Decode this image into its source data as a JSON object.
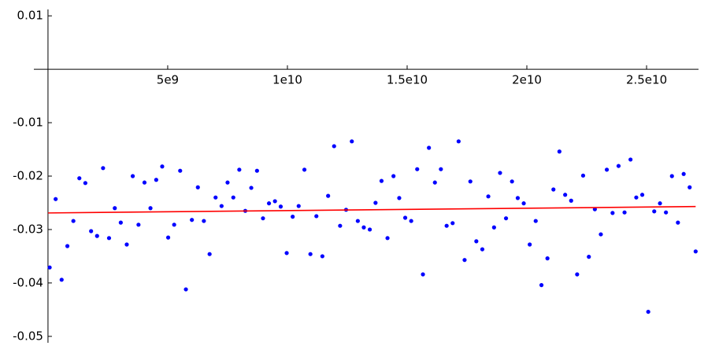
{
  "chart_data": {
    "type": "scatter",
    "xlim": [
      -590000000,
      27170000000
    ],
    "ylim": [
      -0.0512,
      0.0112
    ],
    "xticks": [
      {
        "value": 5000000000,
        "label": "5e9"
      },
      {
        "value": 10000000000,
        "label": "1e10"
      },
      {
        "value": 15000000000,
        "label": "1.5e10"
      },
      {
        "value": 20000000000,
        "label": "2e10"
      },
      {
        "value": 25000000000,
        "label": "2.5e10"
      }
    ],
    "yticks": [
      0.01,
      -0.01,
      -0.02,
      -0.03,
      -0.04,
      -0.05
    ],
    "series": [
      {
        "type": "scatter",
        "color": "#0000ff",
        "x": [
          70000000.0,
          320000000.0,
          570000000.0,
          810000000.0,
          1060000000.0,
          1310000000.0,
          1560000000.0,
          1800000000.0,
          2050000000.0,
          2300000000.0,
          2550000000.0,
          2790000000.0,
          3040000000.0,
          3290000000.0,
          3540000000.0,
          3780000000.0,
          4030000000.0,
          4280000000.0,
          4520000000.0,
          4770000000.0,
          5020000000.0,
          5270000000.0,
          5520000000.0,
          5760000000.0,
          6010000000.0,
          6260000000.0,
          6510000000.0,
          6750000000.0,
          7000000000.0,
          7250000000.0,
          7500000000.0,
          7740000000.0,
          7990000000.0,
          8240000000.0,
          8490000000.0,
          8730000000.0,
          8980000000.0,
          9230000000.0,
          9480000000.0,
          9720000000.0,
          9970000000.0,
          10220000000.0,
          10470000000.0,
          10710000000.0,
          10960000000.0,
          11210000000.0,
          11460000000.0,
          11700000000.0,
          11950000000.0,
          12200000000.0,
          12450000000.0,
          12690000000.0,
          12940000000.0,
          13190000000.0,
          13440000000.0,
          13680000000.0,
          13930000000.0,
          14180000000.0,
          14430000000.0,
          14670000000.0,
          14920000000.0,
          15170000000.0,
          15420000000.0,
          15660000000.0,
          15910000000.0,
          16160000000.0,
          16410000000.0,
          16650000000.0,
          16900000000.0,
          17150000000.0,
          17400000000.0,
          17640000000.0,
          17890000000.0,
          18140000000.0,
          18390000000.0,
          18630000000.0,
          18880000000.0,
          19130000000.0,
          19380000000.0,
          19620000000.0,
          19870000000.0,
          20120000000.0,
          20370000000.0,
          20610000000.0,
          20860000000.0,
          21110000000.0,
          21360000000.0,
          21600000000.0,
          21850000000.0,
          22100000000.0,
          22350000000.0,
          22590000000.0,
          22840000000.0,
          23090000000.0,
          23340000000.0,
          23580000000.0,
          23830000000.0,
          24080000000.0,
          24330000000.0,
          24570000000.0,
          24820000000.0,
          25070000000.0,
          25320000000.0,
          25560000000.0,
          25810000000.0,
          26060000000.0,
          26310000000.0,
          26550000000.0,
          26800000000.0,
          27050000000.0
        ],
        "values": [
          -0.0371,
          -0.0243,
          -0.0394,
          -0.0331,
          -0.0284,
          -0.0204,
          -0.0213,
          -0.0303,
          -0.0312,
          -0.0185,
          -0.0316,
          -0.026,
          -0.0287,
          -0.0328,
          -0.02,
          -0.0291,
          -0.0212,
          -0.026,
          -0.0207,
          -0.0182,
          -0.0315,
          -0.0291,
          -0.019,
          -0.0412,
          -0.0282,
          -0.0221,
          -0.0284,
          -0.0346,
          -0.024,
          -0.0256,
          -0.0212,
          -0.024,
          -0.0188,
          -0.0265,
          -0.0222,
          -0.019,
          -0.0279,
          -0.0251,
          -0.0247,
          -0.0257,
          -0.0344,
          -0.0276,
          -0.0256,
          -0.0188,
          -0.0346,
          -0.0275,
          -0.035,
          -0.0237,
          -0.0144,
          -0.0293,
          -0.0263,
          -0.0135,
          -0.0284,
          -0.0296,
          -0.03,
          -0.025,
          -0.0209,
          -0.0316,
          -0.02,
          -0.0241,
          -0.0278,
          -0.0284,
          -0.0187,
          -0.0384,
          -0.0147,
          -0.0212,
          -0.0187,
          -0.0293,
          -0.0288,
          -0.0135,
          -0.0357,
          -0.021,
          -0.0322,
          -0.0337,
          -0.0238,
          -0.0296,
          -0.0194,
          -0.0279,
          -0.021,
          -0.0241,
          -0.0251,
          -0.0328,
          -0.0284,
          -0.0404,
          -0.0354,
          -0.0225,
          -0.0154,
          -0.0235,
          -0.0246,
          -0.0384,
          -0.0199,
          -0.0351,
          -0.0262,
          -0.0309,
          -0.0188,
          -0.0269,
          -0.0181,
          -0.0268,
          -0.0169,
          -0.024,
          -0.0235,
          -0.0454,
          -0.0266,
          -0.0251,
          -0.0268,
          -0.02,
          -0.0287,
          -0.0196,
          -0.0221,
          -0.0341
        ]
      },
      {
        "type": "line",
        "color": "#ff0000",
        "x": [
          0,
          27050000000
        ],
        "values": [
          -0.0269,
          -0.0257
        ]
      }
    ]
  }
}
